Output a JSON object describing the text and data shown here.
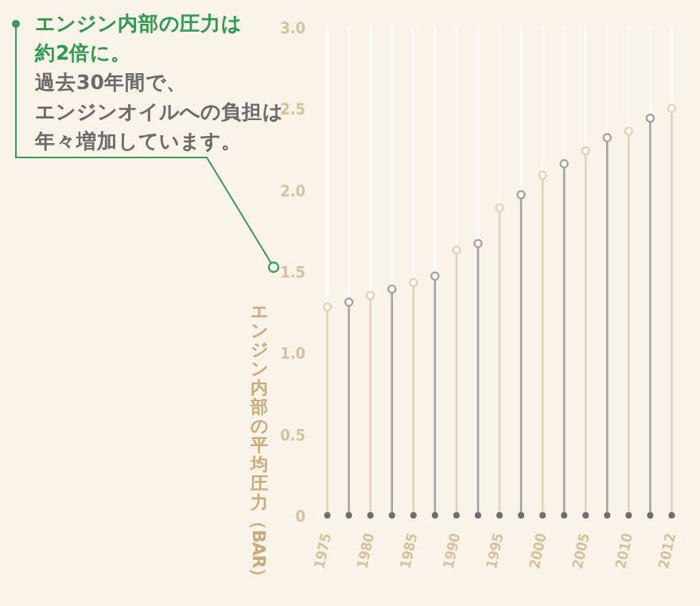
{
  "chart_data": {
    "type": "lollipop",
    "title": "エンジン内部の圧力は約2倍に。",
    "subtitle": "過去30年間で、",
    "annotations": [
      "エンジンオイルへの負担は年々増加しています。"
    ],
    "ylabel": "エンジン内部の平均圧力（BAR）",
    "categories": [
      "1975",
      null,
      "1980",
      null,
      "1985",
      null,
      "1990",
      null,
      "1995",
      null,
      "2000",
      null,
      "2005",
      null,
      "2010",
      null,
      "2012"
    ],
    "values": [
      1.28,
      1.31,
      1.35,
      1.39,
      1.43,
      1.47,
      1.63,
      1.67,
      1.89,
      1.97,
      2.09,
      2.16,
      2.24,
      2.32,
      2.36,
      2.44,
      2.5
    ],
    "colors": [
      "#e3d3b6",
      "#a3a3a3",
      "#e3d3b6",
      "#a3a3a3",
      "#e3d3b6",
      "#a3a3a3",
      "#e3d3b6",
      "#a3a3a3",
      "#e3d3b6",
      "#a3a3a3",
      "#e3d3b6",
      "#a3a3a3",
      "#e3d3b6",
      "#a3a3a3",
      "#e3d3b6",
      "#a3a3a3",
      "#e3d3b6"
    ],
    "ylim": [
      0,
      3
    ],
    "yticks": [
      0,
      0.5,
      {
        "value": 1,
        "label": "1.0"
      },
      1.5,
      {
        "value": 2,
        "label": "2.0"
      },
      2.5,
      {
        "value": 3,
        "label": "3.0"
      }
    ],
    "marker": "circle",
    "grid": "x"
  }
}
